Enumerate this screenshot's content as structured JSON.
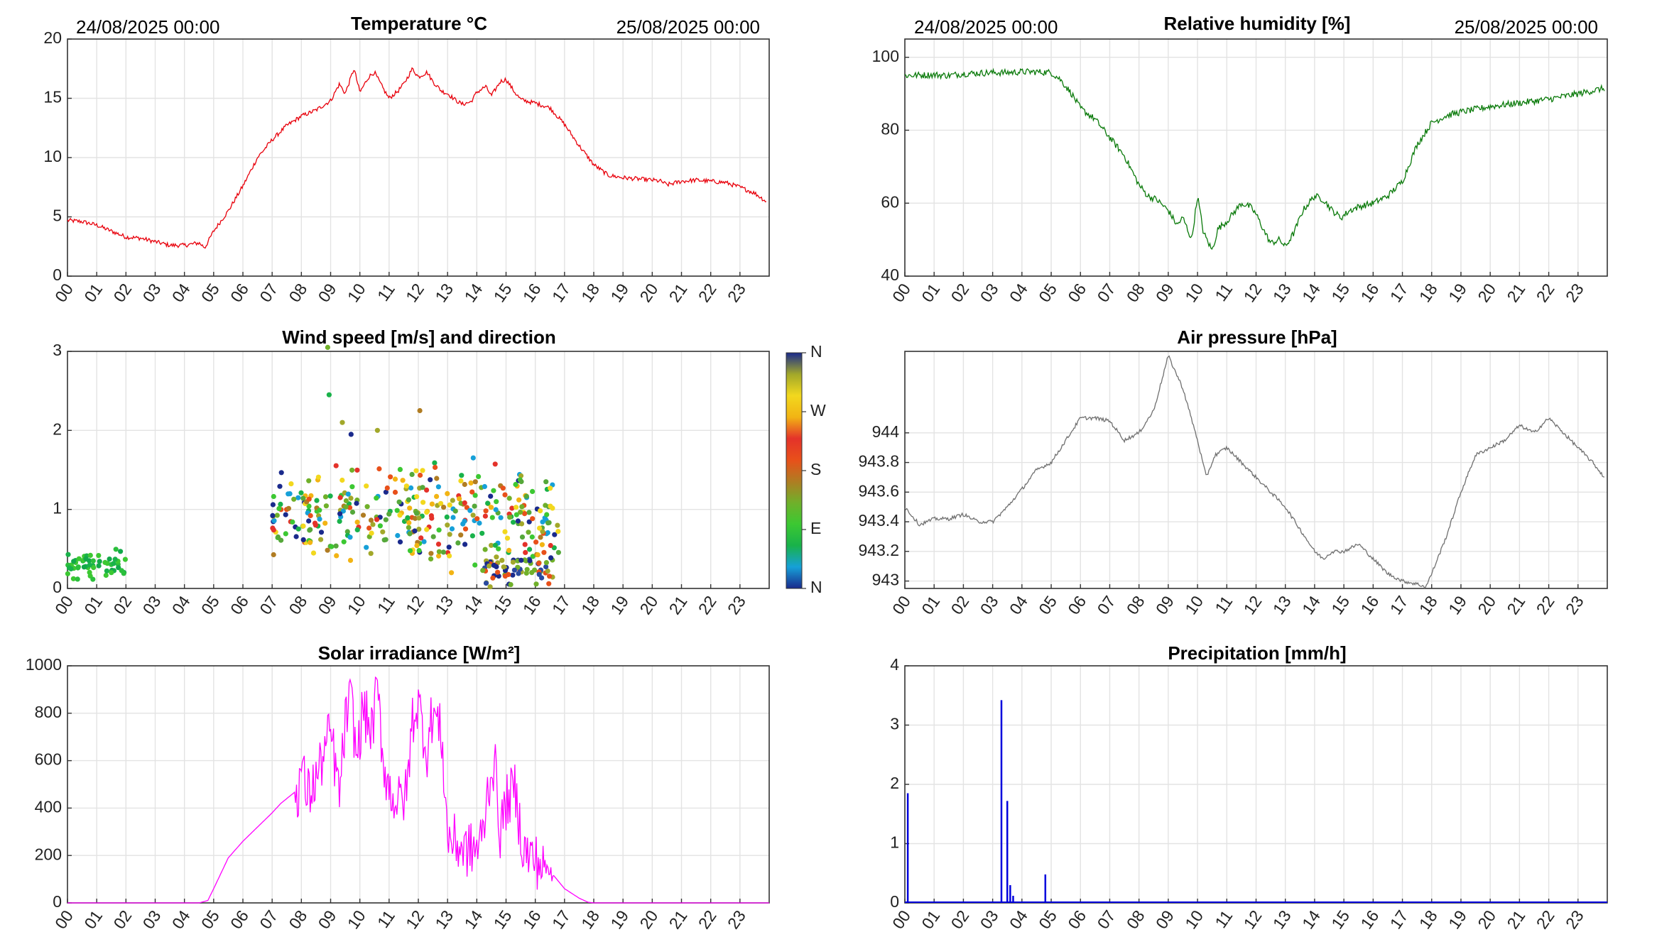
{
  "header": {
    "start_date": "24/08/2025 00:00",
    "end_date": "25/08/2025 00:00"
  },
  "hour_labels": [
    "00",
    "01",
    "02",
    "03",
    "04",
    "05",
    "06",
    "07",
    "08",
    "09",
    "10",
    "11",
    "12",
    "13",
    "14",
    "15",
    "16",
    "17",
    "18",
    "19",
    "20",
    "21",
    "22",
    "23"
  ],
  "colorbar": {
    "labels": [
      "N",
      "W",
      "S",
      "E",
      "N"
    ],
    "colors": [
      "#1a2a8c",
      "#16a0d8",
      "#19b24a",
      "#3cc832",
      "#70b02a",
      "#b07c22",
      "#e8501a",
      "#e4322a",
      "#f2b414",
      "#f2d81e",
      "#a2a82a",
      "#1a2a8c"
    ]
  },
  "chart_data": [
    {
      "id": "temperature",
      "type": "line",
      "title": "Temperature °C",
      "color": "#e8000b",
      "ylim": [
        0,
        20
      ],
      "yticks": [
        0,
        5,
        10,
        15,
        20
      ],
      "ytick_labels": [
        "0",
        "5",
        "10",
        "15",
        "20"
      ],
      "x": [
        0,
        0.5,
        1,
        1.5,
        2,
        2.5,
        3,
        3.5,
        4,
        4.5,
        4.7,
        5,
        5.5,
        6,
        6.5,
        7,
        7.5,
        8,
        8.5,
        9,
        9.3,
        9.5,
        9.8,
        10,
        10.3,
        10.5,
        10.8,
        11,
        11.3,
        11.5,
        11.8,
        12,
        12.3,
        12.5,
        12.8,
        13,
        13.3,
        13.5,
        13.8,
        14,
        14.3,
        14.5,
        14.8,
        15,
        15.3,
        15.5,
        15.8,
        16,
        16.5,
        17,
        17.5,
        18,
        18.5,
        19,
        19.5,
        20,
        20.3,
        20.5,
        21,
        21.5,
        22,
        22.5,
        23,
        23.5,
        23.9
      ],
      "y": [
        4.7,
        4.6,
        4.3,
        3.8,
        3.3,
        3.2,
        2.9,
        2.6,
        2.6,
        2.8,
        2.4,
        3.8,
        5.5,
        7.6,
        10,
        11.5,
        12.7,
        13.5,
        14,
        14.8,
        16.2,
        15.4,
        17.5,
        15.5,
        16.8,
        17.2,
        15.8,
        15,
        15.6,
        16.2,
        17.5,
        16.8,
        17.2,
        16.4,
        15.6,
        15.4,
        14.8,
        14.5,
        14.7,
        15.5,
        16,
        15.2,
        16.4,
        16.6,
        15.5,
        14.9,
        14.7,
        14.6,
        14.2,
        12.8,
        11,
        9.4,
        8.5,
        8.3,
        8.2,
        8.1,
        8,
        7.7,
        8,
        8.1,
        8,
        7.9,
        7.5,
        7,
        6.3
      ],
      "noise": 0.18
    },
    {
      "id": "humidity",
      "type": "line",
      "title": "Relative humidity [%]",
      "color": "#0a7a0a",
      "ylim": [
        40,
        105
      ],
      "yticks": [
        40,
        60,
        80,
        100
      ],
      "ytick_labels": [
        "40",
        "60",
        "80",
        "100"
      ],
      "x": [
        0,
        1,
        1.5,
        2,
        3,
        3.5,
        4,
        4.5,
        5,
        5.3,
        5.7,
        6,
        6.5,
        7,
        7.5,
        8,
        8.3,
        8.6,
        9,
        9.3,
        9.5,
        9.8,
        10,
        10.2,
        10.5,
        10.7,
        11,
        11.3,
        11.5,
        11.8,
        12,
        12.3,
        12.5,
        12.8,
        13,
        13.3,
        13.6,
        14,
        14.3,
        14.6,
        14.9,
        15.2,
        15.5,
        16,
        16.5,
        17,
        17.5,
        18,
        18.5,
        19,
        20,
        21,
        22,
        23,
        23.9
      ],
      "y": [
        95,
        95.2,
        95,
        95.5,
        95.8,
        95.8,
        96,
        96,
        95.8,
        94,
        90,
        86,
        83,
        78,
        73,
        65,
        62,
        61,
        58,
        54,
        56,
        50,
        62,
        52,
        47,
        53,
        55,
        58,
        60,
        59,
        57,
        52,
        49,
        50,
        48,
        52,
        58,
        62,
        61,
        58,
        56,
        58,
        59,
        60,
        62,
        66,
        76,
        82,
        84,
        85,
        86.5,
        87.5,
        88.5,
        90,
        91.5
      ],
      "noise": 0.9
    },
    {
      "id": "wind",
      "type": "scatter",
      "title": "Wind speed [m/s] and direction",
      "ylim": [
        0,
        3
      ],
      "yticks": [
        0,
        1,
        2,
        3
      ],
      "ytick_labels": [
        "0",
        "1",
        "2",
        "3"
      ],
      "clusters": [
        {
          "x0": 0.0,
          "x1": 2.0,
          "center": 0.3,
          "spread": 0.12,
          "count": 55,
          "colors": [
            "#19b24a",
            "#2bbf3c",
            "#12a84a",
            "#3cc832"
          ]
        },
        {
          "x0": 7.0,
          "x1": 16.8,
          "center": 0.9,
          "spread": 0.42,
          "count": 360,
          "colors": [
            "#1a2a8c",
            "#16a0d8",
            "#19b24a",
            "#3cc832",
            "#70b02a",
            "#b07c22",
            "#e8501a",
            "#e4322a",
            "#f2b414",
            "#f2d81e",
            "#a2a82a",
            "#55a83a"
          ]
        },
        {
          "x0": 14.2,
          "x1": 16.6,
          "center": 0.25,
          "spread": 0.15,
          "count": 70,
          "colors": [
            "#1a2a8c",
            "#2a4aa0",
            "#a2a82a",
            "#70b02a",
            "#e8501a"
          ]
        }
      ],
      "outliers": [
        [
          8.9,
          3.05,
          "#70b02a"
        ],
        [
          8.95,
          2.45,
          "#19b24a"
        ],
        [
          9.4,
          2.1,
          "#a2a82a"
        ],
        [
          12.05,
          2.25,
          "#b07c22"
        ],
        [
          9.7,
          1.95,
          "#1a2a8c"
        ],
        [
          10.6,
          2.0,
          "#a2a82a"
        ]
      ]
    },
    {
      "id": "pressure",
      "type": "line",
      "title": "Air pressure [hPa]",
      "color": "#707070",
      "ylim": [
        942.95,
        944.55
      ],
      "yticks": [
        943,
        943.2,
        943.4,
        943.6,
        943.8,
        944
      ],
      "ytick_labels": [
        "943",
        "943.2",
        "943.4",
        "943.6",
        "943.8",
        "944"
      ],
      "x": [
        0,
        0.5,
        1,
        1.5,
        2,
        2.5,
        3,
        3.5,
        4,
        4.5,
        5,
        5.5,
        6,
        6.5,
        7,
        7.5,
        8,
        8.5,
        9,
        9.5,
        10,
        10.3,
        10.6,
        11,
        11.5,
        12,
        12.5,
        13,
        13.5,
        14,
        14.3,
        14.6,
        15,
        15.5,
        16,
        16.5,
        17,
        17.5,
        17.8,
        18,
        18.5,
        19,
        19.5,
        20,
        20.5,
        21,
        21.5,
        22,
        22.5,
        23,
        23.5,
        23.9
      ],
      "y": [
        943.5,
        943.38,
        943.42,
        943.42,
        943.45,
        943.4,
        943.4,
        943.5,
        943.62,
        943.75,
        943.8,
        943.95,
        944.1,
        944.1,
        944.08,
        943.95,
        944.0,
        944.15,
        944.52,
        944.3,
        943.95,
        943.7,
        943.85,
        943.9,
        943.8,
        943.7,
        943.6,
        943.5,
        943.35,
        943.2,
        943.15,
        943.2,
        943.2,
        943.25,
        943.15,
        943.05,
        943.0,
        942.98,
        942.96,
        943.05,
        943.3,
        943.6,
        943.85,
        943.9,
        943.95,
        944.05,
        944.0,
        944.1,
        944.0,
        943.9,
        943.8,
        943.7
      ],
      "noise": 0.012
    },
    {
      "id": "solar",
      "type": "line",
      "title": "Solar irradiance [W/m²]",
      "color": "#ff00ff",
      "ylim": [
        0,
        1000
      ],
      "yticks": [
        0,
        200,
        400,
        600,
        800,
        1000
      ],
      "ytick_labels": [
        "0",
        "200",
        "400",
        "600",
        "800",
        "1000"
      ],
      "x": [
        0,
        4.5,
        4.8,
        5,
        5.5,
        6,
        6.5,
        7,
        7.3,
        7.6,
        7.9,
        8,
        8.2,
        8.5,
        8.8,
        9,
        9.3,
        9.5,
        9.7,
        9.9,
        10.1,
        10.4,
        10.6,
        10.8,
        11,
        11.3,
        11.6,
        11.8,
        12,
        12.3,
        12.5,
        12.8,
        13,
        13.3,
        13.6,
        14,
        14.2,
        14.4,
        14.6,
        14.8,
        15,
        15.3,
        15.6,
        16,
        16.3,
        16.6,
        17,
        17.5,
        17.8,
        18,
        24
      ],
      "y": [
        0,
        0,
        10,
        60,
        190,
        260,
        320,
        380,
        420,
        450,
        480,
        580,
        450,
        520,
        640,
        720,
        450,
        760,
        860,
        600,
        820,
        720,
        900,
        600,
        480,
        420,
        460,
        780,
        840,
        640,
        820,
        700,
        280,
        250,
        220,
        230,
        280,
        500,
        600,
        300,
        420,
        480,
        220,
        180,
        150,
        120,
        60,
        20,
        3,
        0,
        0
      ],
      "noise": 40,
      "noise_range": [
        7.8,
        16.6
      ]
    },
    {
      "id": "precipitation",
      "type": "bar",
      "title": "Precipitation [mm/h]",
      "color": "#0000dd",
      "ylim": [
        0,
        4
      ],
      "yticks": [
        0,
        1,
        2,
        3,
        4
      ],
      "ytick_labels": [
        "0",
        "1",
        "2",
        "3",
        "4"
      ],
      "x": [
        0.1,
        3.3,
        3.5,
        3.6,
        3.7,
        4.8
      ],
      "values": [
        1.85,
        3.42,
        1.72,
        0.3,
        0.12,
        0.48
      ]
    }
  ]
}
